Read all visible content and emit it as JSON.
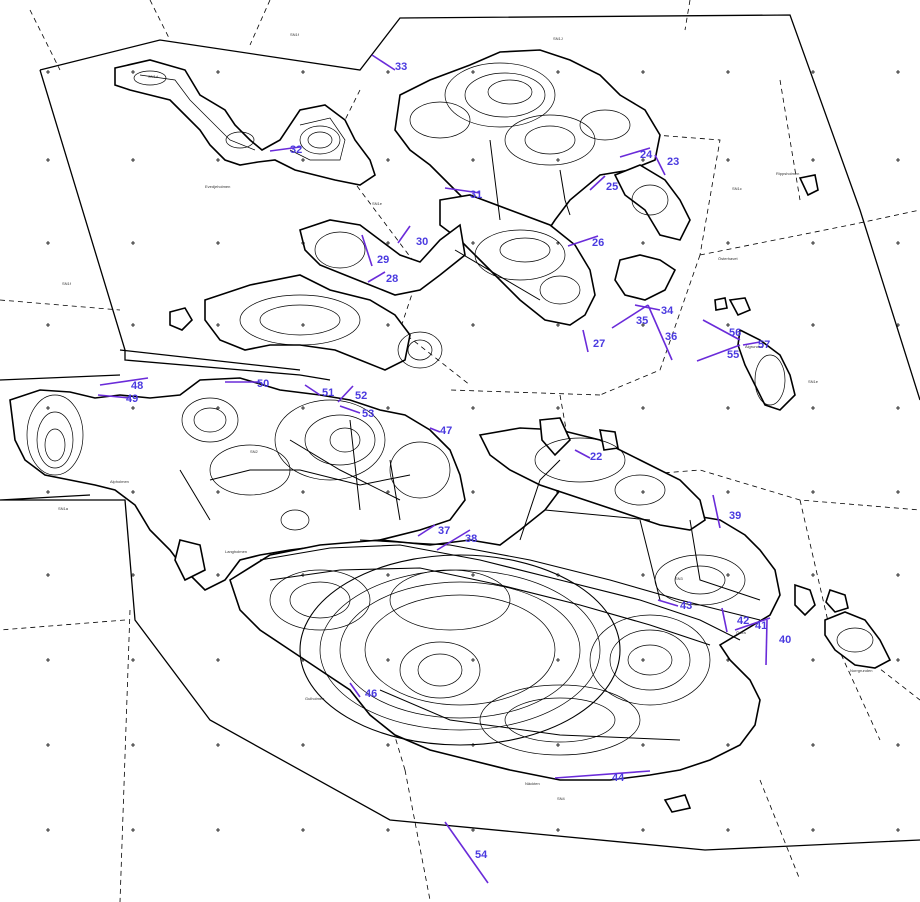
{
  "map": {
    "place_labels": {
      "evedjeholmen": "Evedjeholmen",
      "ostanhavet": "Österhavet",
      "alfgrunden": "Älgrunden",
      "ripsholmen": "Rippsholmen",
      "norrgrunden": "Norrgrunden",
      "nackten": "Näckten",
      "orstra": "Östra",
      "gulholmen": "Gulholmen",
      "alpsholmen": "Alpholmen",
      "langholmen": "Langholmen"
    },
    "grid_labels": [
      "SN1f",
      "SN1d",
      "SN1J",
      "SN1e",
      "SN1c",
      "SN1f",
      "SN1e",
      "SN4",
      "SN3",
      "SN1a",
      "SN2"
    ],
    "markers": [
      {
        "label": "22"
      },
      {
        "label": "23"
      },
      {
        "label": "24"
      },
      {
        "label": "25"
      },
      {
        "label": "26"
      },
      {
        "label": "27"
      },
      {
        "label": "28"
      },
      {
        "label": "29"
      },
      {
        "label": "30"
      },
      {
        "label": "31"
      },
      {
        "label": "32"
      },
      {
        "label": "33"
      },
      {
        "label": "34"
      },
      {
        "label": "35"
      },
      {
        "label": "36"
      },
      {
        "label": "37"
      },
      {
        "label": "38"
      },
      {
        "label": "39"
      },
      {
        "label": "40"
      },
      {
        "label": "41"
      },
      {
        "label": "42"
      },
      {
        "label": "43"
      },
      {
        "label": "44"
      },
      {
        "label": "46"
      },
      {
        "label": "47"
      },
      {
        "label": "48"
      },
      {
        "label": "49"
      },
      {
        "label": "50"
      },
      {
        "label": "51"
      },
      {
        "label": "52"
      },
      {
        "label": "53"
      },
      {
        "label": "54"
      },
      {
        "label": "55"
      },
      {
        "label": "56"
      },
      {
        "label": "57"
      }
    ],
    "colors": {
      "arrow": "#6a2bd9",
      "label": "#4a3ae0",
      "ink": "#000000"
    }
  }
}
